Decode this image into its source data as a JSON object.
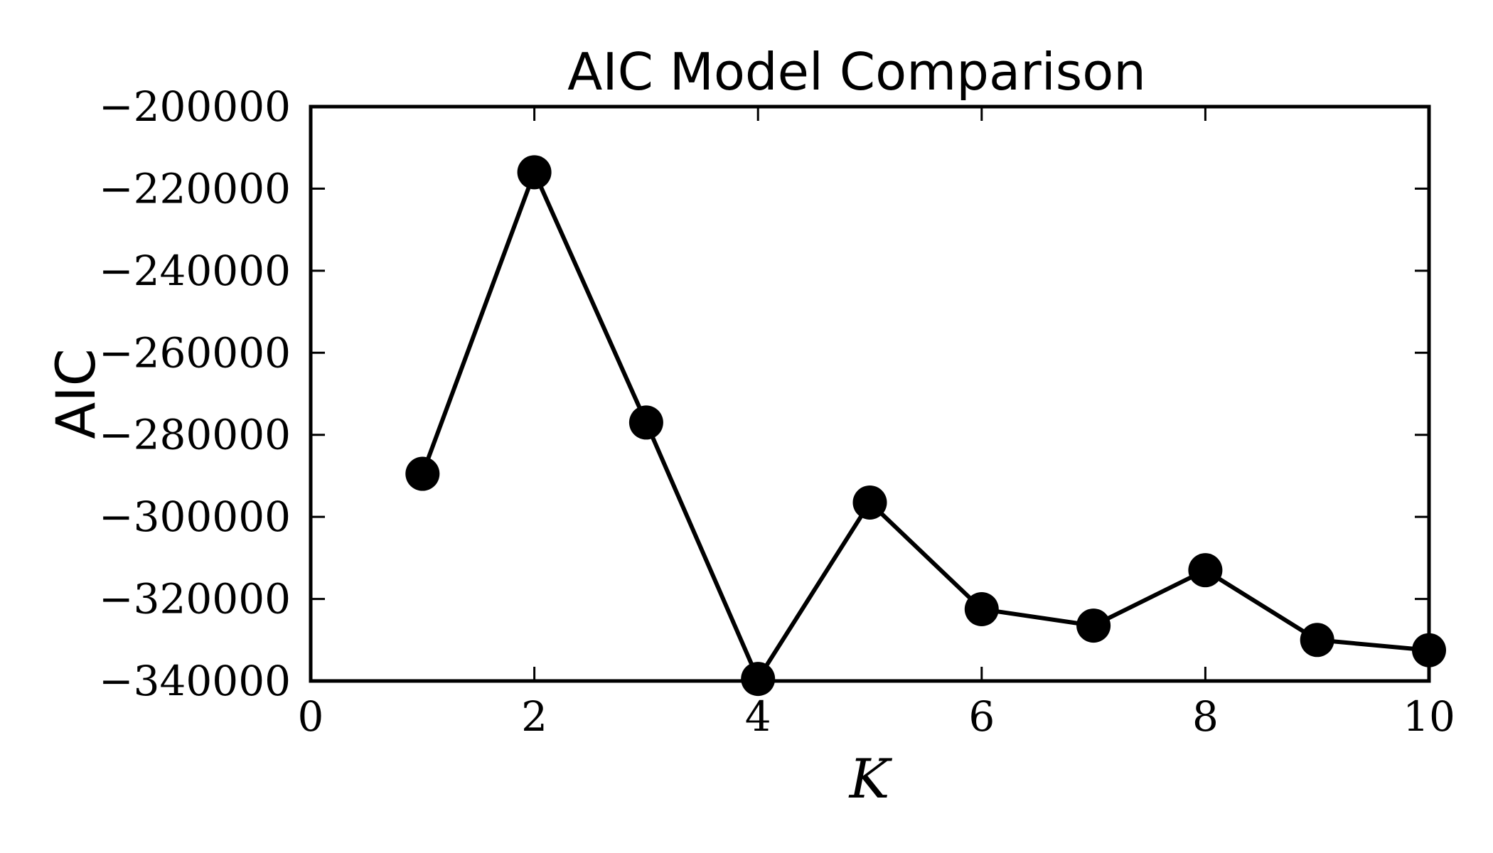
{
  "chart_data": {
    "type": "line",
    "title": "AIC Model Comparison",
    "xlabel": "K",
    "ylabel": "AIC",
    "xlim": [
      0,
      10
    ],
    "ylim": [
      -340000,
      -200000
    ],
    "xticks": [
      0,
      2,
      4,
      6,
      8,
      10
    ],
    "yticks": [
      -340000,
      -320000,
      -300000,
      -280000,
      -260000,
      -240000,
      -220000,
      -200000
    ],
    "xtick_labels": [
      "0",
      "2",
      "4",
      "6",
      "8",
      "10"
    ],
    "ytick_labels": [
      "−340000",
      "−320000",
      "−300000",
      "−280000",
      "−260000",
      "−240000",
      "−220000",
      "−200000"
    ],
    "grid": false,
    "series": [
      {
        "x": [
          1,
          2,
          3,
          4,
          5,
          6,
          7,
          8,
          9,
          10
        ],
        "values": [
          -289500,
          -216000,
          -277000,
          -339500,
          -296500,
          -322500,
          -326500,
          -313000,
          -330000,
          -332500
        ],
        "color": "#000000",
        "marker": "circle"
      }
    ]
  }
}
